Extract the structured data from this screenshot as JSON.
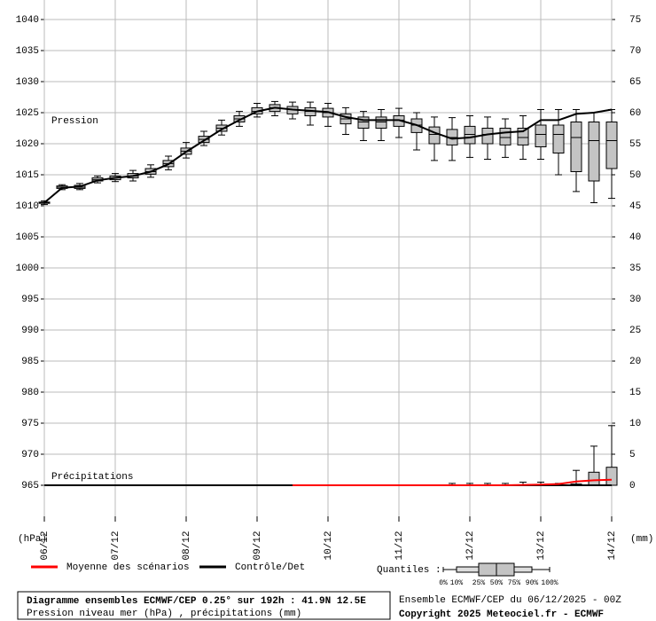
{
  "chart_data": {
    "type": "boxplot",
    "title": "Diagramme ensembles ECMWF/CEP 0.25° sur 192h : 41.9N 12.5E",
    "subtitle": "Pression niveau mer (hPa) , précipitations (mm)",
    "run_info": "Ensemble ECMWF/CEP du 06/12/2025 - 00Z",
    "copyright": "Copyright 2025 Meteociel.fr - ECMWF",
    "y_label": "(hPa)",
    "y2_label": "(mm)",
    "annotations": [
      "Pression",
      "Précipitations"
    ],
    "quantiles_title": "Quantiles :",
    "quantile_labels": [
      "0%",
      "10%",
      "25%",
      "50%",
      "75%",
      "90%",
      "100%"
    ],
    "grid": true,
    "xlim": [
      0,
      192
    ],
    "xticks": [
      {
        "value": 0,
        "label": "06/12"
      },
      {
        "value": 24,
        "label": "07/12"
      },
      {
        "value": 48,
        "label": "08/12"
      },
      {
        "value": 72,
        "label": "09/12"
      },
      {
        "value": 96,
        "label": "10/12"
      },
      {
        "value": 120,
        "label": "11/12"
      },
      {
        "value": 144,
        "label": "12/12"
      },
      {
        "value": 168,
        "label": "13/12"
      },
      {
        "value": 192,
        "label": "14/12"
      }
    ],
    "ylim": [
      960,
      1043
    ],
    "yticks": [
      965,
      970,
      975,
      980,
      985,
      990,
      995,
      1000,
      1005,
      1010,
      1015,
      1020,
      1025,
      1030,
      1035,
      1040
    ],
    "y2lim": [
      -5,
      78
    ],
    "y2ticks": [
      0,
      5,
      10,
      15,
      20,
      25,
      30,
      35,
      40,
      45,
      50,
      55,
      60,
      65,
      70,
      75
    ],
    "box_color": "#c4c4c4",
    "x": [
      0,
      6,
      12,
      18,
      24,
      30,
      36,
      42,
      48,
      54,
      60,
      66,
      72,
      78,
      84,
      90,
      96,
      102,
      108,
      114,
      120,
      126,
      132,
      138,
      144,
      150,
      156,
      162,
      168,
      174,
      180,
      186,
      192
    ],
    "pressure_quantiles": [
      [
        1010.2,
        1010.4,
        1010.5,
        1010.6,
        1010.8
      ],
      [
        1012.6,
        1012.8,
        1013,
        1013.2,
        1013.4
      ],
      [
        1012.6,
        1012.8,
        1013,
        1013.3,
        1013.6
      ],
      [
        1013.7,
        1014,
        1014.2,
        1014.5,
        1014.8
      ],
      [
        1013.9,
        1014.2,
        1014.5,
        1014.8,
        1015.2
      ],
      [
        1014,
        1014.5,
        1014.8,
        1015.2,
        1015.7
      ],
      [
        1014.6,
        1015.1,
        1015.5,
        1016,
        1016.6
      ],
      [
        1015.8,
        1016.3,
        1016.8,
        1017.3,
        1018
      ],
      [
        1017.7,
        1018.3,
        1018.8,
        1019.3,
        1020.2
      ],
      [
        1019.7,
        1020.2,
        1020.7,
        1021.2,
        1022
      ],
      [
        1021.4,
        1022,
        1022.5,
        1023,
        1023.8
      ],
      [
        1022.8,
        1023.5,
        1024,
        1024.5,
        1025.2
      ],
      [
        1024.3,
        1024.8,
        1025.2,
        1025.8,
        1026.5
      ],
      [
        1024.5,
        1025.2,
        1025.8,
        1026.3,
        1026.8
      ],
      [
        1024,
        1024.8,
        1025.5,
        1026,
        1026.7
      ],
      [
        1023,
        1024.5,
        1025.2,
        1025.8,
        1026.7
      ],
      [
        1022.8,
        1024.3,
        1025,
        1025.7,
        1026.5
      ],
      [
        1021.5,
        1023.2,
        1024,
        1024.8,
        1025.8
      ],
      [
        1020.5,
        1022.5,
        1023.5,
        1024.3,
        1025.2
      ],
      [
        1020.5,
        1022.5,
        1023.5,
        1024.3,
        1025.5
      ],
      [
        1021,
        1022.8,
        1023.8,
        1024.5,
        1025.7
      ],
      [
        1019,
        1021.8,
        1023,
        1024,
        1025
      ],
      [
        1017.3,
        1020,
        1021.5,
        1022.7,
        1024.3
      ],
      [
        1017.3,
        1019.8,
        1021,
        1022.3,
        1024.2
      ],
      [
        1017.8,
        1020,
        1021.5,
        1022.8,
        1024.5
      ],
      [
        1017.5,
        1020,
        1021.5,
        1022.5,
        1024.3
      ],
      [
        1017.8,
        1019.8,
        1021,
        1022.5,
        1024
      ],
      [
        1017.5,
        1019.8,
        1021,
        1022.5,
        1024.5
      ],
      [
        1017.5,
        1019.5,
        1021.5,
        1023,
        1025.5
      ],
      [
        1015,
        1018.5,
        1021.5,
        1023,
        1025.5
      ],
      [
        1012.3,
        1015.5,
        1021,
        1023.5,
        1025.5
      ],
      [
        1010.5,
        1014,
        1020.5,
        1023.5,
        1025
      ],
      [
        1011.2,
        1016,
        1020.5,
        1023.5,
        1025.5
      ]
    ],
    "precip_x": [
      138,
      144,
      150,
      156,
      162,
      168,
      174,
      180,
      186,
      192
    ],
    "precip_quantiles": [
      [
        0,
        0,
        0,
        0,
        0.3
      ],
      [
        0,
        0,
        0,
        0,
        0.3
      ],
      [
        0,
        0,
        0,
        0,
        0.3
      ],
      [
        0,
        0,
        0,
        0,
        0.3
      ],
      [
        0,
        0,
        0,
        0,
        0.5
      ],
      [
        0,
        0,
        0,
        0,
        0.5
      ],
      [
        0,
        0,
        0,
        0,
        0.3
      ],
      [
        0,
        0,
        0,
        0.2,
        2.4
      ],
      [
        0,
        0,
        0,
        2.1,
        6.3
      ],
      [
        0,
        0,
        0,
        2.9,
        9.6
      ]
    ],
    "series": [
      {
        "name": "Moyenne des scénarios",
        "color": "#ff0000",
        "precip": [
          null,
          null,
          null,
          null,
          null,
          null,
          null,
          null,
          null,
          null,
          null,
          null,
          null,
          null,
          0,
          0,
          0,
          0,
          0,
          0,
          0,
          0,
          0,
          0,
          0,
          0,
          0,
          0.05,
          0.1,
          0.2,
          0.6,
          0.8,
          0.9
        ]
      },
      {
        "name": "Contrôle/Det",
        "color": "#000000",
        "pressure": [
          1010.5,
          1012.9,
          1013.1,
          1014.1,
          1014.5,
          1014.8,
          1015.5,
          1016.7,
          1018.7,
          1020.5,
          1022.3,
          1023.8,
          1025.2,
          1025.8,
          1025.5,
          1025.3,
          1025.1,
          1024.3,
          1023.8,
          1023.8,
          1023.8,
          1023,
          1021.8,
          1020.8,
          1021,
          1021.5,
          1021.8,
          1022,
          1023.8,
          1023.8,
          1024.8,
          1025,
          1025.5
        ],
        "precip": [
          0,
          0,
          0,
          0,
          0,
          0,
          0,
          0,
          0,
          0,
          0,
          0,
          0,
          0,
          0,
          0,
          0,
          0,
          0,
          0,
          0,
          0,
          0,
          0,
          0,
          0,
          0,
          0,
          0,
          0,
          0,
          0,
          0
        ]
      }
    ]
  }
}
